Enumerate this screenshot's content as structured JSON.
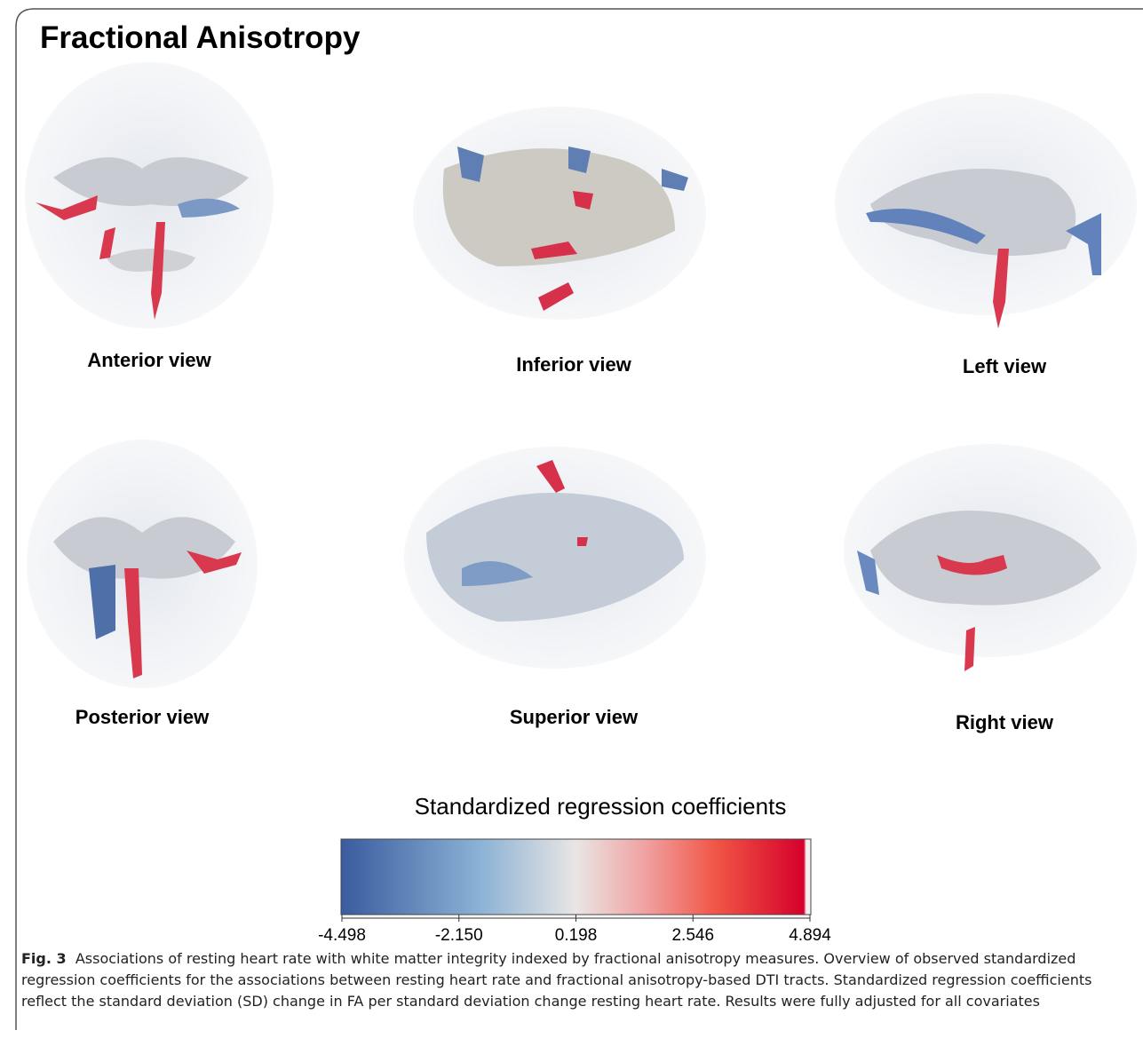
{
  "title": "Fractional Anisotropy",
  "views": [
    "Anterior  view",
    "Inferior view",
    "Left view",
    "Posterior  view",
    "Superior view",
    "Right view"
  ],
  "colorbar": {
    "title": "Standardized regression coefficients",
    "ticks": [
      "-4.498",
      "-2.150",
      "0.198",
      "2.546",
      "4.894"
    ]
  },
  "caption": {
    "label": "Fig. 3",
    "text": "Associations of resting heart rate with white matter integrity indexed by fractional anisotropy measures. Overview of observed standardized regression coefficients for the associations between resting heart rate and fractional anisotropy-based DTI tracts. Standardized regression coefficients reflect the standard deviation (SD) change in FA per standard deviation change resting heart rate. Results were fully adjusted for all covariates"
  }
}
